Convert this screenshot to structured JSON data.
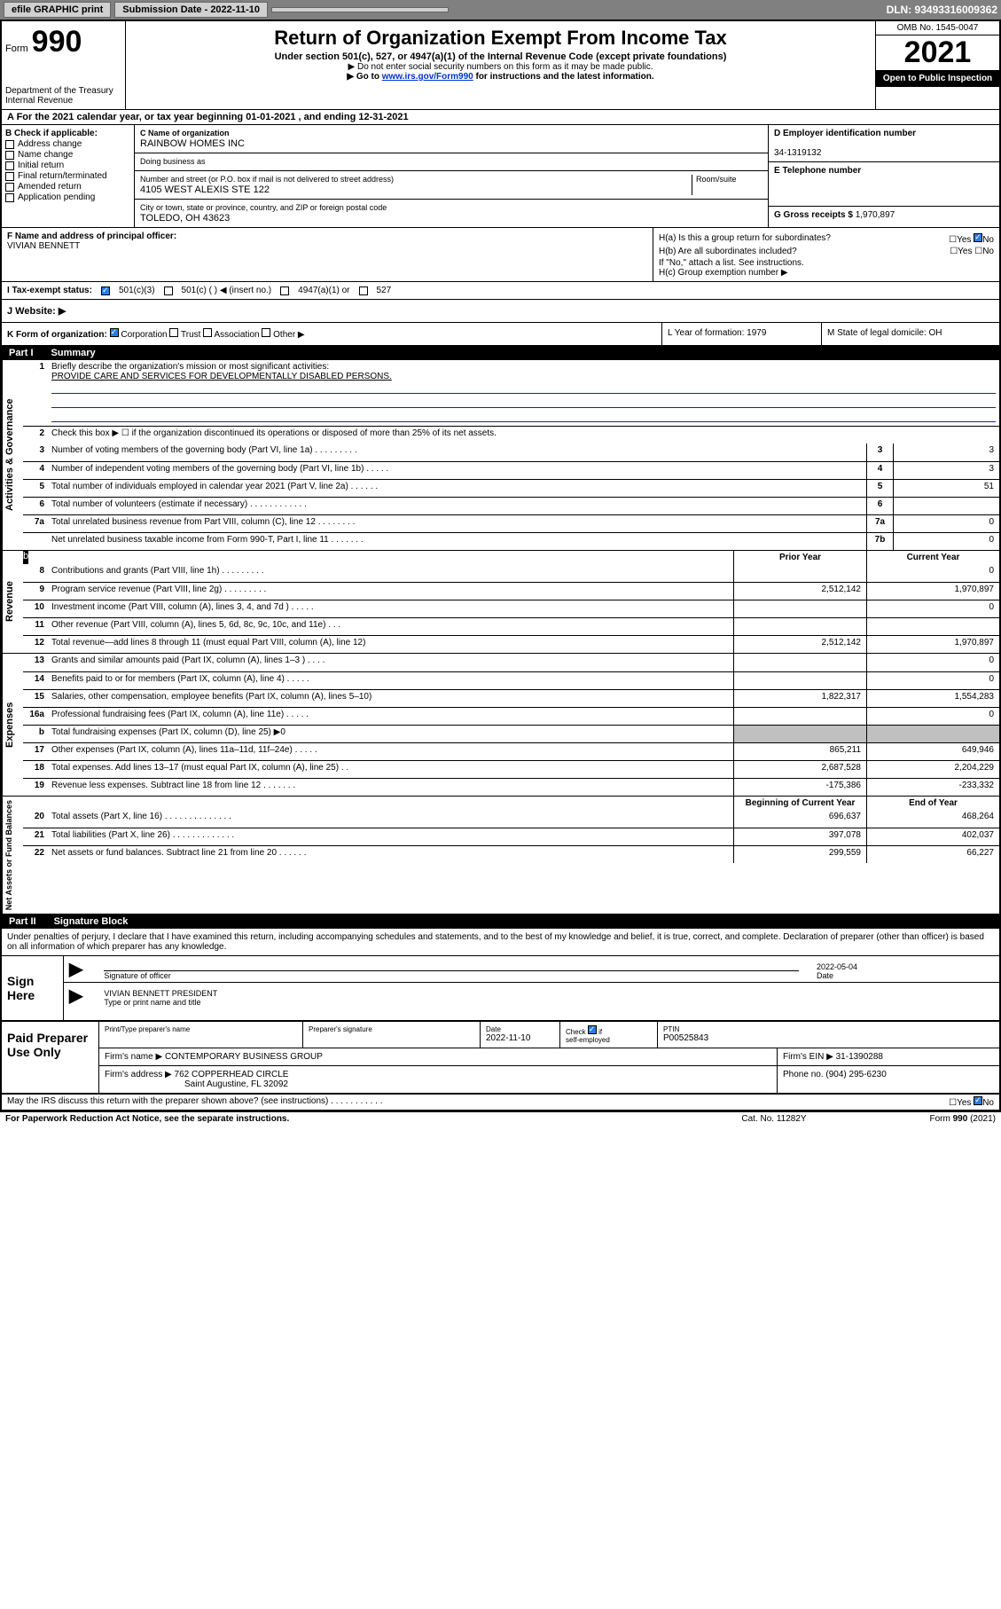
{
  "topbar": {
    "efile": "efile GRAPHIC print",
    "submission": "Submission Date - 2022-11-10",
    "dln": "DLN: 93493316009362"
  },
  "header": {
    "form_prefix": "Form",
    "form_number": "990",
    "dept": "Department of the Treasury\nInternal Revenue Service",
    "title": "Return of Organization Exempt From Income Tax",
    "subtitle": "Under section 501(c), 527, or 4947(a)(1) of the Internal Revenue Code (except private foundations)",
    "note1": "▶ Do not enter social security numbers on this form as it may be made public.",
    "note2_pre": "▶ Go to ",
    "note2_link": "www.irs.gov/Form990",
    "note2_post": " for instructions and the latest information.",
    "omb": "OMB No. 1545-0047",
    "year": "2021",
    "open": "Open to Public Inspection"
  },
  "row_a": "A For the 2021 calendar year, or tax year beginning 01-01-2021   , and ending 12-31-2021",
  "col_b": {
    "label": "B Check if applicable:",
    "items": [
      "Address change",
      "Name change",
      "Initial return",
      "Final return/terminated",
      "Amended return",
      "Application pending"
    ]
  },
  "col_c": {
    "name_label": "C Name of organization",
    "name": "RAINBOW HOMES INC",
    "dba_label": "Doing business as",
    "dba": "",
    "street_label": "Number and street (or P.O. box if mail is not delivered to street address)",
    "room_label": "Room/suite",
    "street": "4105 WEST ALEXIS STE 122",
    "city_label": "City or town, state or province, country, and ZIP or foreign postal code",
    "city": "TOLEDO, OH  43623"
  },
  "col_d": {
    "ein_label": "D Employer identification number",
    "ein": "34-1319132",
    "phone_label": "E Telephone number",
    "phone": "",
    "gross_label": "G Gross receipts $",
    "gross": "1,970,897"
  },
  "row_f": {
    "label": "F Name and address of principal officer:",
    "name": "VIVIAN BENNETT"
  },
  "col_h": {
    "ha": "H(a)  Is this a group return for subordinates?",
    "ha_no": "No",
    "hb": "H(b)  Are all subordinates included?",
    "hb_note": "If \"No,\" attach a list. See instructions.",
    "hc": "H(c)  Group exemption number ▶"
  },
  "row_tax": {
    "label": "I    Tax-exempt status:",
    "opt1": "501(c)(3)",
    "opt2": "501(c) (    ) ◀ (insert no.)",
    "opt3": "4947(a)(1) or",
    "opt4": "527"
  },
  "row_web": {
    "label": "J    Website: ▶"
  },
  "row_k": {
    "label": "K Form of organization:",
    "corp": "Corporation",
    "trust": "Trust",
    "assoc": "Association",
    "other": "Other ▶"
  },
  "col_l": "L Year of formation: 1979",
  "col_m": "M State of legal domicile: OH",
  "part1": {
    "label": "Part I",
    "title": "Summary"
  },
  "governance": {
    "tab": "Activities & Governance",
    "l1_label": "Briefly describe the organization's mission or most significant activities:",
    "l1_text": "PROVIDE CARE AND SERVICES FOR DEVELOPMENTALLY DISABLED PERSONS.",
    "l2": "Check this box ▶ ☐  if the organization discontinued its operations or disposed of more than 25% of its net assets.",
    "rows": [
      {
        "n": "3",
        "d": "Number of voting members of the governing body (Part VI, line 1a)   .   .   .   .   .   .   .   .   .",
        "k": "3",
        "v": "3"
      },
      {
        "n": "4",
        "d": "Number of independent voting members of the governing body (Part VI, line 1b)  .   .   .   .   .",
        "k": "4",
        "v": "3"
      },
      {
        "n": "5",
        "d": "Total number of individuals employed in calendar year 2021 (Part V, line 2a)  .   .   .   .   .   .",
        "k": "5",
        "v": "51"
      },
      {
        "n": "6",
        "d": "Total number of volunteers (estimate if necessary)  .   .   .   .   .   .   .   .   .   .   .   .",
        "k": "6",
        "v": ""
      },
      {
        "n": "7a",
        "d": "Total unrelated business revenue from Part VIII, column (C), line 12  .   .   .   .   .   .   .   .",
        "k": "7a",
        "v": "0"
      },
      {
        "n": "",
        "d": "Net unrelated business taxable income from Form 990-T, Part I, line 11  .   .   .   .   .   .   .",
        "k": "7b",
        "v": "0"
      }
    ]
  },
  "revenue": {
    "tab": "Revenue",
    "head_prior": "Prior Year",
    "head_current": "Current Year",
    "rows": [
      {
        "n": "8",
        "d": "Contributions and grants (Part VIII, line 1h)   .   .   .   .   .   .   .   .   .",
        "p": "",
        "c": "0"
      },
      {
        "n": "9",
        "d": "Program service revenue (Part VIII, line 2g)  .   .   .   .   .   .   .   .   .",
        "p": "2,512,142",
        "c": "1,970,897"
      },
      {
        "n": "10",
        "d": "Investment income (Part VIII, column (A), lines 3, 4, and 7d )  .   .   .   .   .",
        "p": "",
        "c": "0"
      },
      {
        "n": "11",
        "d": "Other revenue (Part VIII, column (A), lines 5, 6d, 8c, 9c, 10c, and 11e)  .   .   .",
        "p": "",
        "c": ""
      },
      {
        "n": "12",
        "d": "Total revenue—add lines 8 through 11 (must equal Part VIII, column (A), line 12)",
        "p": "2,512,142",
        "c": "1,970,897"
      }
    ]
  },
  "expenses": {
    "tab": "Expenses",
    "rows": [
      {
        "n": "13",
        "d": "Grants and similar amounts paid (Part IX, column (A), lines 1–3 )  .   .   .   .",
        "p": "",
        "c": "0"
      },
      {
        "n": "14",
        "d": "Benefits paid to or for members (Part IX, column (A), line 4)  .   .   .   .   .",
        "p": "",
        "c": "0"
      },
      {
        "n": "15",
        "d": "Salaries, other compensation, employee benefits (Part IX, column (A), lines 5–10)",
        "p": "1,822,317",
        "c": "1,554,283"
      },
      {
        "n": "16a",
        "d": "Professional fundraising fees (Part IX, column (A), line 11e)  .   .   .   .   .",
        "p": "",
        "c": "0"
      },
      {
        "n": "b",
        "d": "Total fundraising expenses (Part IX, column (D), line 25) ▶0",
        "p": "SHADE",
        "c": "SHADE"
      },
      {
        "n": "17",
        "d": "Other expenses (Part IX, column (A), lines 11a–11d, 11f–24e)  .   .   .   .   .",
        "p": "865,211",
        "c": "649,946"
      },
      {
        "n": "18",
        "d": "Total expenses. Add lines 13–17 (must equal Part IX, column (A), line 25)   .   .",
        "p": "2,687,528",
        "c": "2,204,229"
      },
      {
        "n": "19",
        "d": "Revenue less expenses. Subtract line 18 from line 12  .   .   .   .   .   .   .",
        "p": "-175,386",
        "c": "-233,332"
      }
    ]
  },
  "netassets": {
    "tab": "Net Assets or Fund Balances",
    "head_begin": "Beginning of Current Year",
    "head_end": "End of Year",
    "rows": [
      {
        "n": "20",
        "d": "Total assets (Part X, line 16)  .   .   .   .   .   .   .   .   .   .   .   .   .   .",
        "p": "696,637",
        "c": "468,264"
      },
      {
        "n": "21",
        "d": "Total liabilities (Part X, line 26)  .   .   .   .   .   .   .   .   .   .   .   .   .",
        "p": "397,078",
        "c": "402,037"
      },
      {
        "n": "22",
        "d": "Net assets or fund balances. Subtract line 21 from line 20  .   .   .   .   .   .",
        "p": "299,559",
        "c": "66,227"
      }
    ]
  },
  "part2": {
    "label": "Part II",
    "title": "Signature Block"
  },
  "penalties": "Under penalties of perjury, I declare that I have examined this return, including accompanying schedules and statements, and to the best of my knowledge and belief, it is true, correct, and complete. Declaration of preparer (other than officer) is based on all information of which preparer has any knowledge.",
  "sign": {
    "left": "Sign Here",
    "sig_officer": "Signature of officer",
    "date_label": "Date",
    "date": "2022-05-04",
    "name": "VIVIAN BENNETT PRESIDENT",
    "name_label": "Type or print name and title"
  },
  "paid": {
    "left": "Paid Preparer Use Only",
    "c1": "Print/Type preparer's name",
    "c2": "Preparer's signature",
    "c3_label": "Date",
    "c3": "2022-11-10",
    "c4_label": "Check ☑ if self-employed",
    "c5_label": "PTIN",
    "c5": "P00525843",
    "firm_label": "Firm's name     ▶",
    "firm": "CONTEMPORARY BUSINESS GROUP",
    "ein_label": "Firm's EIN ▶",
    "ein": "31-1390288",
    "addr_label": "Firm's address ▶",
    "addr1": "762 COPPERHEAD CIRCLE",
    "addr2": "Saint Augustine, FL 32092",
    "phone_label": "Phone no.",
    "phone": "(904) 295-6230"
  },
  "footer": {
    "discuss": "May the IRS discuss this return with the preparer shown above? (see instructions)   .   .   .   .   .   .   .   .   .   .   .",
    "discuss_no": "No",
    "pra": "For Paperwork Reduction Act Notice, see the separate instructions.",
    "cat": "Cat. No. 11282Y",
    "form": "Form 990 (2021)"
  }
}
